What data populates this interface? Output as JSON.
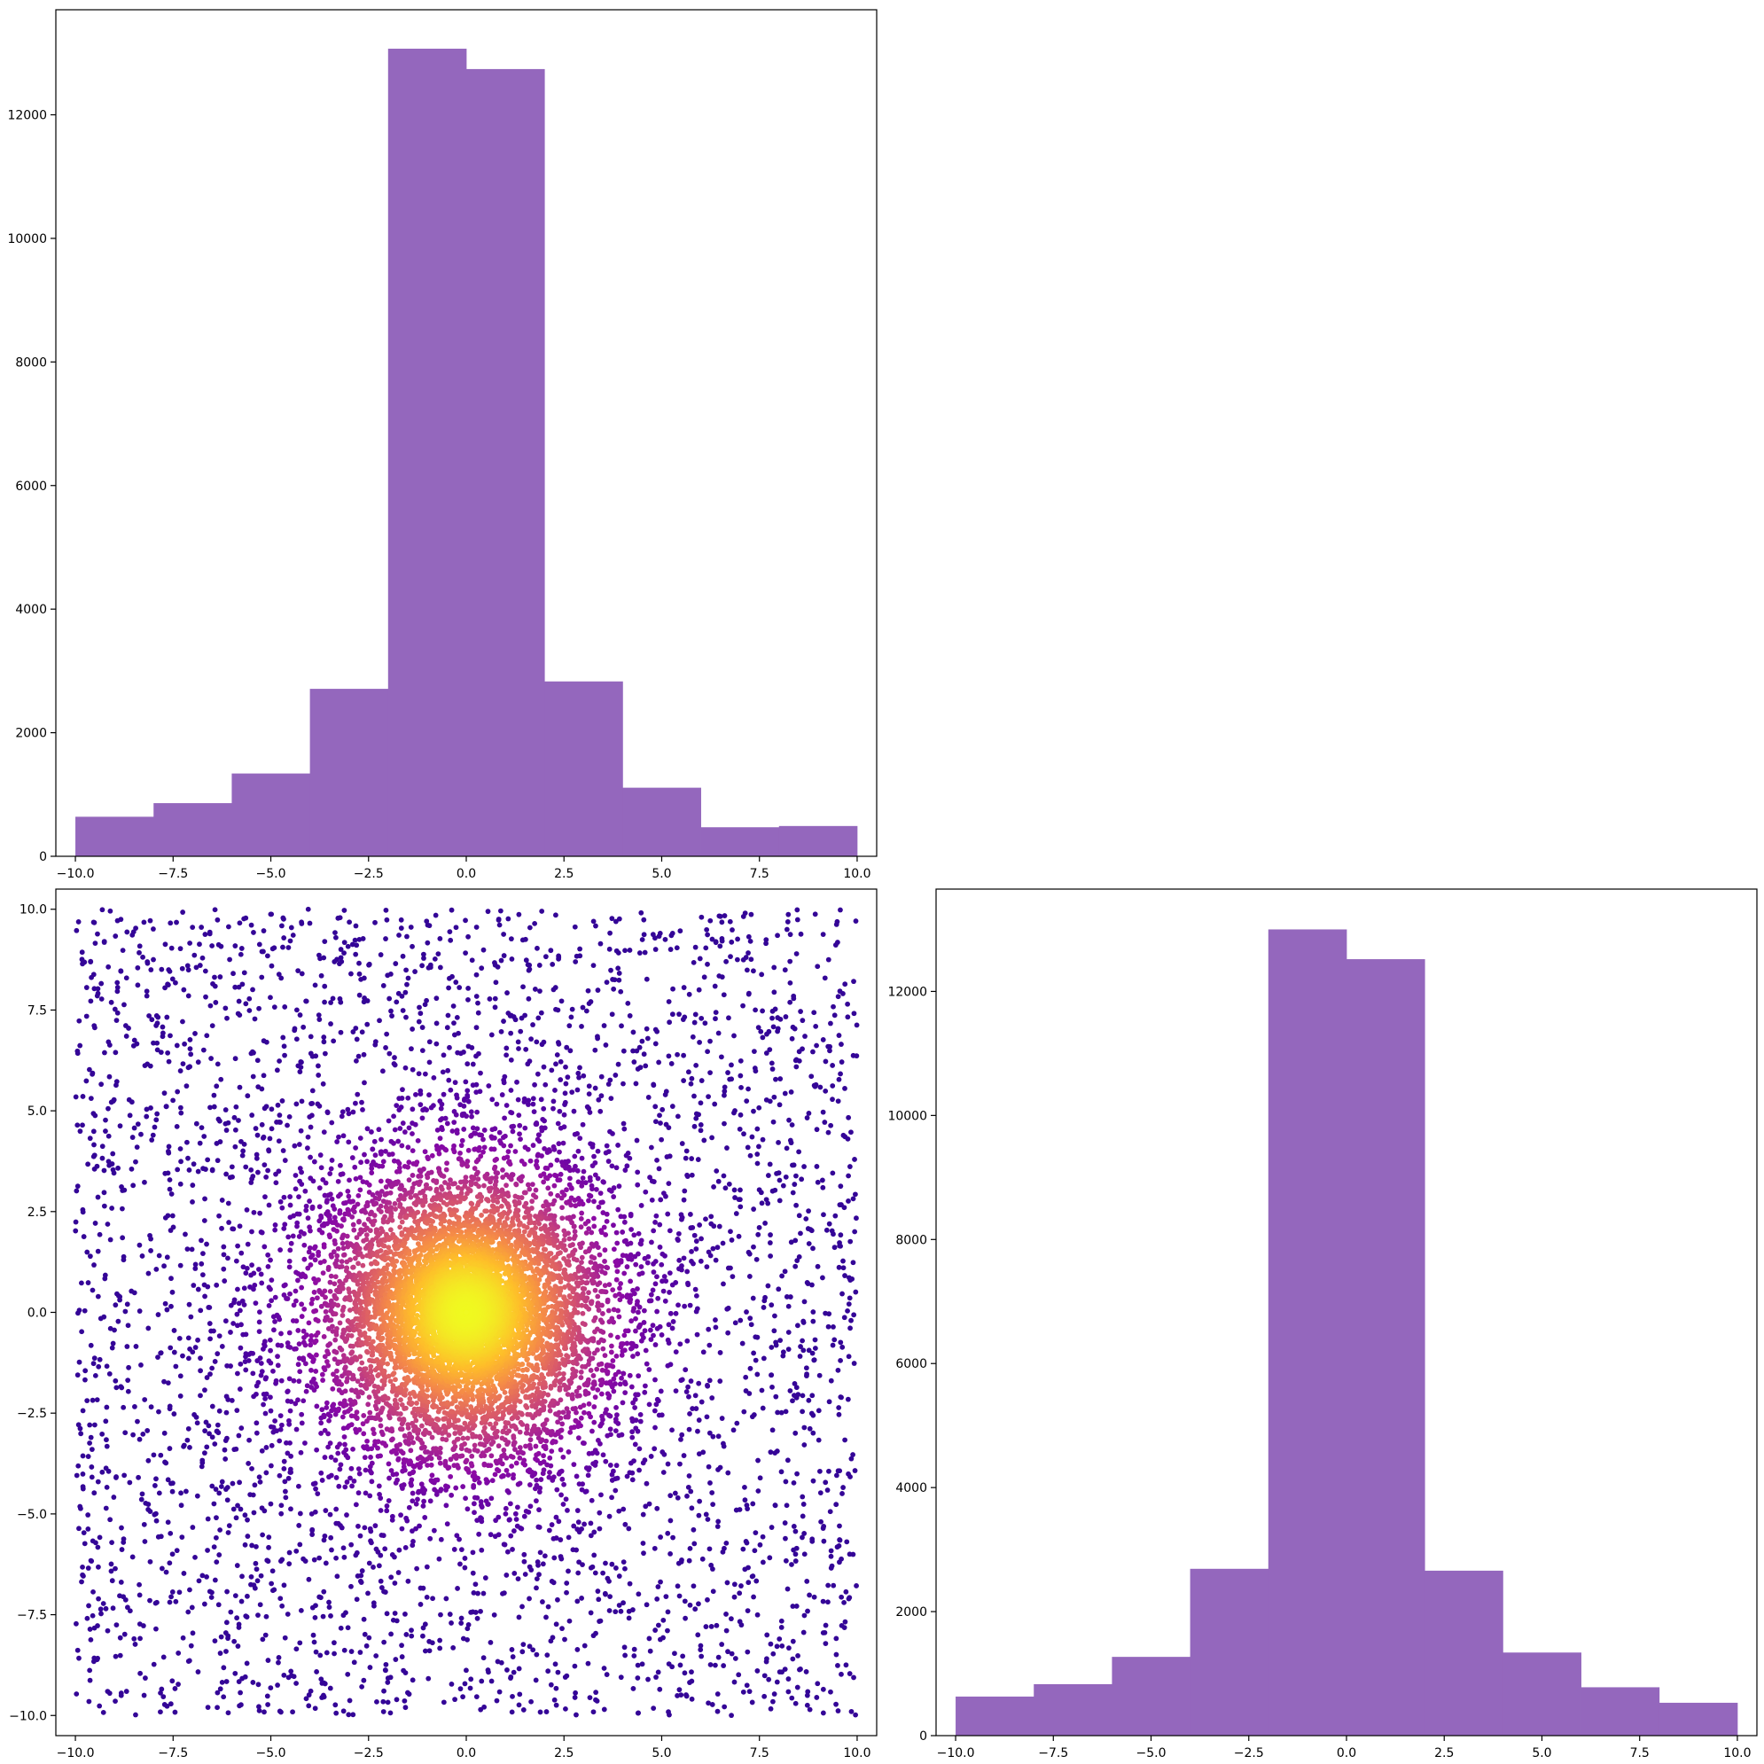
{
  "chart_data": [
    {
      "panel": "top-left",
      "type": "bar",
      "subtype": "histogram",
      "bar_color": "#9467bd",
      "bin_edges": [
        -10,
        -8,
        -6,
        -4,
        -2,
        0,
        2,
        4,
        6,
        8,
        10
      ],
      "values": [
        640,
        860,
        1340,
        2710,
        13070,
        12740,
        2830,
        1110,
        470,
        490
      ],
      "xlim": [
        -10.5,
        10.5
      ],
      "ylim": [
        0,
        13700
      ],
      "xticks": [
        -10,
        -7.5,
        -5,
        -2.5,
        0,
        2.5,
        5,
        7.5,
        10
      ],
      "xtick_labels": [
        "−10.0",
        "−7.5",
        "−5.0",
        "−2.5",
        "0.0",
        "2.5",
        "5.0",
        "7.5",
        "10.0"
      ],
      "yticks": [
        0,
        2000,
        4000,
        6000,
        8000,
        10000,
        12000
      ],
      "ytick_labels": [
        "0",
        "2000",
        "4000",
        "6000",
        "8000",
        "10000",
        "12000"
      ],
      "grid": false
    },
    {
      "panel": "bottom-left",
      "type": "scatter",
      "colormap": "plasma",
      "colormap_colors": [
        "#0d0887",
        "#5302a3",
        "#8b0aa5",
        "#b83289",
        "#db5c68",
        "#f48849",
        "#febd2a",
        "#f0f921"
      ],
      "color_by": "density (radial distance from origin)",
      "x_range": [
        -10,
        10
      ],
      "y_range": [
        -10,
        10
      ],
      "point_count_estimate": 30000,
      "distribution": "uniform background over the square plus dense concentration around (0, 0)",
      "xlim": [
        -10.5,
        10.5
      ],
      "ylim": [
        -10.5,
        10.5
      ],
      "xticks": [
        -10,
        -7.5,
        -5,
        -2.5,
        0,
        2.5,
        5,
        7.5,
        10
      ],
      "xtick_labels": [
        "−10.0",
        "−7.5",
        "−5.0",
        "−2.5",
        "0.0",
        "2.5",
        "5.0",
        "7.5",
        "10.0"
      ],
      "yticks": [
        -10,
        -7.5,
        -5,
        -2.5,
        0,
        2.5,
        5,
        7.5,
        10
      ],
      "ytick_labels": [
        "−10.0",
        "−7.5",
        "−5.0",
        "−2.5",
        "0.0",
        "2.5",
        "5.0",
        "7.5",
        "10.0"
      ],
      "grid": false
    },
    {
      "panel": "bottom-right",
      "type": "bar",
      "subtype": "histogram",
      "bar_color": "#9467bd",
      "bin_edges": [
        -10,
        -8,
        -6,
        -4,
        -2,
        0,
        2,
        4,
        6,
        8,
        10
      ],
      "values": [
        630,
        830,
        1270,
        2690,
        13000,
        12520,
        2660,
        1340,
        780,
        530
      ],
      "xlim": [
        -10.5,
        10.5
      ],
      "ylim": [
        0,
        13650
      ],
      "xticks": [
        -10,
        -7.5,
        -5,
        -2.5,
        0,
        2.5,
        5,
        7.5,
        10
      ],
      "xtick_labels": [
        "−10.0",
        "−7.5",
        "−5.0",
        "−2.5",
        "0.0",
        "2.5",
        "5.0",
        "7.5",
        "10.0"
      ],
      "yticks": [
        0,
        2000,
        4000,
        6000,
        8000,
        10000,
        12000
      ],
      "ytick_labels": [
        "0",
        "2000",
        "4000",
        "6000",
        "8000",
        "10000",
        "12000"
      ],
      "grid": false
    }
  ]
}
